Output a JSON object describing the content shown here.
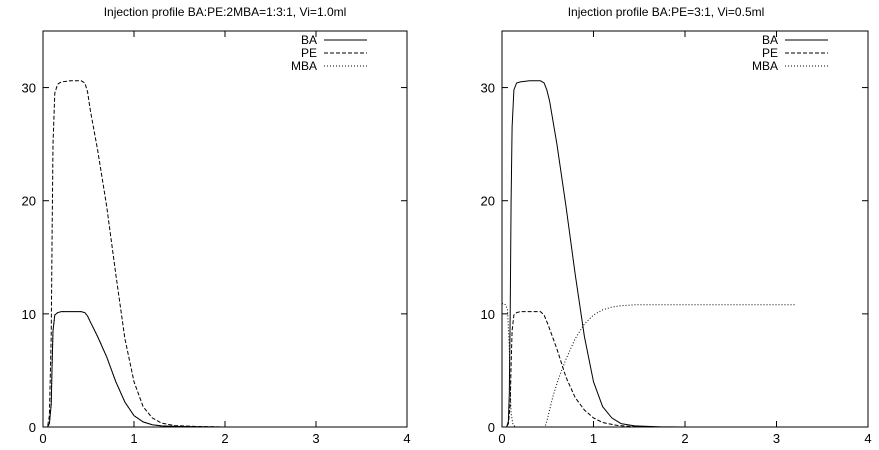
{
  "chart_data": [
    {
      "type": "line",
      "title": "Injection profile BA:PE:2MBA=1:3:1, Vi=1.0ml",
      "xlabel": "",
      "ylabel": "",
      "xlim": [
        0,
        4
      ],
      "ylim": [
        0,
        35
      ],
      "xticks": [
        0,
        1,
        2,
        3,
        4
      ],
      "yticks": [
        0,
        10,
        20,
        30
      ],
      "grid": false,
      "legend_position": "top-right",
      "series": [
        {
          "name": "BA",
          "dash": "solid",
          "points": [
            [
              0,
              0
            ],
            [
              0.05,
              0
            ],
            [
              0.07,
              0.3
            ],
            [
              0.09,
              2.0
            ],
            [
              0.1,
              5.5
            ],
            [
              0.11,
              8.5
            ],
            [
              0.13,
              9.9
            ],
            [
              0.16,
              10.1
            ],
            [
              0.2,
              10.2
            ],
            [
              0.3,
              10.2
            ],
            [
              0.42,
              10.2
            ],
            [
              0.46,
              10.1
            ],
            [
              0.49,
              9.8
            ],
            [
              0.52,
              9.3
            ],
            [
              0.6,
              8.0
            ],
            [
              0.7,
              6.2
            ],
            [
              0.8,
              4.0
            ],
            [
              0.9,
              2.2
            ],
            [
              1.0,
              1.0
            ],
            [
              1.1,
              0.45
            ],
            [
              1.2,
              0.2
            ],
            [
              1.3,
              0.1
            ],
            [
              1.45,
              0.05
            ],
            [
              1.7,
              0.02
            ],
            [
              2.0,
              0
            ],
            [
              3.2,
              0
            ]
          ]
        },
        {
          "name": "PE",
          "dash": "dashed",
          "points": [
            [
              0,
              0
            ],
            [
              0.05,
              0
            ],
            [
              0.07,
              1.0
            ],
            [
              0.09,
              8
            ],
            [
              0.1,
              17
            ],
            [
              0.11,
              25
            ],
            [
              0.13,
              29.5
            ],
            [
              0.16,
              30.3
            ],
            [
              0.2,
              30.5
            ],
            [
              0.3,
              30.6
            ],
            [
              0.42,
              30.6
            ],
            [
              0.46,
              30.4
            ],
            [
              0.49,
              29.6
            ],
            [
              0.52,
              28.0
            ],
            [
              0.6,
              24.5
            ],
            [
              0.7,
              19.5
            ],
            [
              0.8,
              13.5
            ],
            [
              0.9,
              7.8
            ],
            [
              1.0,
              4.0
            ],
            [
              1.1,
              1.8
            ],
            [
              1.2,
              0.8
            ],
            [
              1.3,
              0.35
            ],
            [
              1.45,
              0.12
            ],
            [
              1.7,
              0.04
            ],
            [
              2.0,
              0
            ],
            [
              3.2,
              0
            ]
          ]
        },
        {
          "name": "MBA",
          "dash": "dotted",
          "points": [
            [
              0,
              0
            ],
            [
              0.05,
              0
            ],
            [
              0.07,
              0.3
            ],
            [
              0.09,
              2.0
            ],
            [
              0.1,
              5.5
            ],
            [
              0.11,
              8.5
            ],
            [
              0.13,
              9.9
            ],
            [
              0.16,
              10.1
            ],
            [
              0.2,
              10.2
            ],
            [
              0.3,
              10.2
            ],
            [
              0.42,
              10.2
            ],
            [
              0.46,
              10.1
            ],
            [
              0.49,
              9.8
            ],
            [
              0.52,
              9.3
            ],
            [
              0.6,
              8.0
            ],
            [
              0.7,
              6.2
            ],
            [
              0.8,
              4.0
            ],
            [
              0.9,
              2.2
            ],
            [
              1.0,
              1.0
            ],
            [
              1.1,
              0.45
            ],
            [
              1.2,
              0.2
            ],
            [
              1.3,
              0.1
            ],
            [
              1.45,
              0.05
            ],
            [
              1.7,
              0.02
            ],
            [
              2.0,
              0
            ],
            [
              3.2,
              0
            ]
          ]
        }
      ]
    },
    {
      "type": "line",
      "title": "Injection profile BA:PE=3:1, Vi=0.5ml",
      "xlabel": "",
      "ylabel": "",
      "xlim": [
        0,
        4
      ],
      "ylim": [
        0,
        35
      ],
      "xticks": [
        0,
        1,
        2,
        3,
        4
      ],
      "yticks": [
        0,
        10,
        20,
        30
      ],
      "grid": false,
      "legend_position": "top-right",
      "series": [
        {
          "name": "BA",
          "dash": "solid",
          "points": [
            [
              0,
              0
            ],
            [
              0.05,
              0
            ],
            [
              0.07,
              0.5
            ],
            [
              0.08,
              3
            ],
            [
              0.09,
              10
            ],
            [
              0.1,
              20
            ],
            [
              0.11,
              26.5
            ],
            [
              0.13,
              29.8
            ],
            [
              0.16,
              30.4
            ],
            [
              0.2,
              30.5
            ],
            [
              0.3,
              30.6
            ],
            [
              0.42,
              30.6
            ],
            [
              0.46,
              30.4
            ],
            [
              0.49,
              29.8
            ],
            [
              0.52,
              28.8
            ],
            [
              0.6,
              25
            ],
            [
              0.7,
              19.5
            ],
            [
              0.8,
              13.5
            ],
            [
              0.9,
              8
            ],
            [
              1.0,
              4
            ],
            [
              1.1,
              1.8
            ],
            [
              1.2,
              0.8
            ],
            [
              1.3,
              0.3
            ],
            [
              1.45,
              0.1
            ],
            [
              1.7,
              0.03
            ],
            [
              2.0,
              0
            ],
            [
              3.2,
              0
            ]
          ]
        },
        {
          "name": "PE",
          "dash": "dashed",
          "points": [
            [
              0,
              0
            ],
            [
              0.05,
              0
            ],
            [
              0.07,
              0.3
            ],
            [
              0.09,
              2.0
            ],
            [
              0.1,
              5.5
            ],
            [
              0.11,
              8.5
            ],
            [
              0.13,
              9.9
            ],
            [
              0.16,
              10.1
            ],
            [
              0.2,
              10.2
            ],
            [
              0.3,
              10.2
            ],
            [
              0.42,
              10.2
            ],
            [
              0.46,
              9.9
            ],
            [
              0.5,
              9.1
            ],
            [
              0.6,
              6.9
            ],
            [
              0.7,
              4.4
            ],
            [
              0.8,
              2.6
            ],
            [
              0.9,
              1.5
            ],
            [
              1.0,
              0.8
            ],
            [
              1.1,
              0.4
            ],
            [
              1.25,
              0.15
            ],
            [
              1.4,
              0.05
            ],
            [
              1.6,
              0.01
            ],
            [
              2.0,
              0
            ],
            [
              3.2,
              0
            ]
          ]
        },
        {
          "name": "MBA",
          "dash": "dotted",
          "points": [
            [
              0,
              10.9
            ],
            [
              0.03,
              10.9
            ],
            [
              0.06,
              10.4
            ],
            [
              0.08,
              7
            ],
            [
              0.09,
              3.5
            ],
            [
              0.1,
              1.2
            ],
            [
              0.12,
              0.2
            ],
            [
              0.15,
              0
            ],
            [
              0.47,
              0
            ],
            [
              0.49,
              0.5
            ],
            [
              0.52,
              1.5
            ],
            [
              0.56,
              2.8
            ],
            [
              0.62,
              4.3
            ],
            [
              0.7,
              6.0
            ],
            [
              0.8,
              7.8
            ],
            [
              0.9,
              9.1
            ],
            [
              1.0,
              9.9
            ],
            [
              1.1,
              10.35
            ],
            [
              1.2,
              10.6
            ],
            [
              1.3,
              10.72
            ],
            [
              1.45,
              10.8
            ],
            [
              1.7,
              10.8
            ],
            [
              2.2,
              10.8
            ],
            [
              3.2,
              10.8
            ]
          ]
        }
      ]
    }
  ]
}
